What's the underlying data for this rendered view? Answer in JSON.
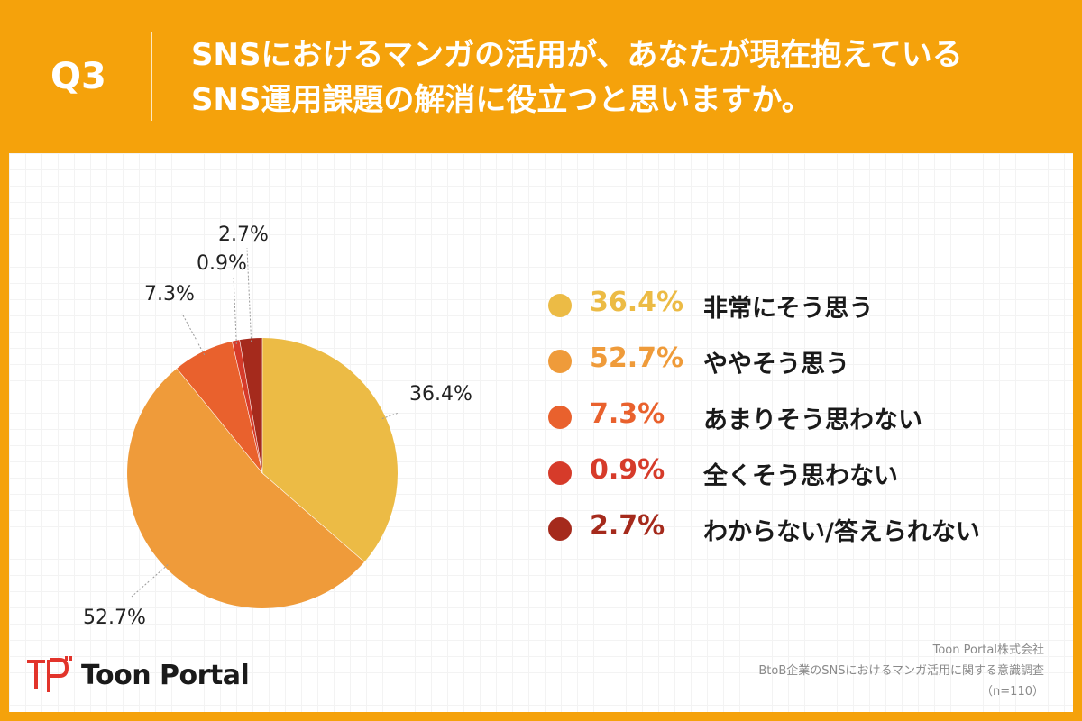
{
  "header": {
    "question_label": "Q3",
    "title_lines": [
      "SNSにおけるマンガの活用が、あなたが現在抱えている",
      "SNS運用課題の解消に役立つと思いますか。"
    ]
  },
  "colors": {
    "background": "#f5a20b",
    "panel": "#ffffff"
  },
  "chart_data": {
    "type": "pie",
    "title": "",
    "start_angle_deg": 0,
    "direction": "clockwise",
    "slices": [
      {
        "label": "非常にそう思う",
        "value": 36.4,
        "value_label": "36.4%",
        "color": "#ecbb45"
      },
      {
        "label": "ややそう思う",
        "value": 52.7,
        "value_label": "52.7%",
        "color": "#ef9b3a"
      },
      {
        "label": "あまりそう思わない",
        "value": 7.3,
        "value_label": "7.3%",
        "color": "#e9612d"
      },
      {
        "label": "全くそう思わない",
        "value": 0.9,
        "value_label": "0.9%",
        "color": "#d63b2a"
      },
      {
        "label": "わからない/答えられない",
        "value": 2.7,
        "value_label": "2.7%",
        "color": "#a52a1c"
      }
    ],
    "legend_position": "right"
  },
  "logo": {
    "icon": "toon-portal-logo-icon",
    "text": "Toon Portal"
  },
  "source": {
    "company": "Toon Portal株式会社",
    "survey": "BtoB企業のSNSにおけるマンガ活用に関する意識調査",
    "sample": "（n=110）"
  }
}
